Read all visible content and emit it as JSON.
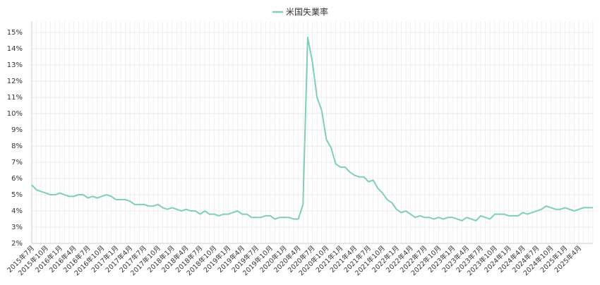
{
  "chart_data": {
    "type": "line",
    "title": "",
    "xlabel": "",
    "ylabel": "",
    "ylim": [
      2,
      15.7
    ],
    "legend_position": "top-center",
    "grid": true,
    "colors": {
      "series": "#7fcdbb",
      "grid": "#e6e6e6",
      "axis": "#333333"
    },
    "y_ticks": [
      "2%",
      "3%",
      "4%",
      "5%",
      "6%",
      "7%",
      "8%",
      "9%",
      "10%",
      "11%",
      "12%",
      "13%",
      "14%",
      "15%"
    ],
    "x_tick_labels": [
      "2015年7月",
      "2015年10月",
      "2016年1月",
      "2016年4月",
      "2016年7月",
      "2016年10月",
      "2017年1月",
      "2017年4月",
      "2017年7月",
      "2017年10月",
      "2018年1月",
      "2018年4月",
      "2018年7月",
      "2018年10月",
      "2019年1月",
      "2019年4月",
      "2019年7月",
      "2019年10月",
      "2020年1月",
      "2020年4月",
      "2020年7月",
      "2020年10月",
      "2021年1月",
      "2021年4月",
      "2021年7月",
      "2021年10月",
      "2022年1月",
      "2022年4月",
      "2022年7月",
      "2022年10月",
      "2023年1月",
      "2023年4月",
      "2023年7月",
      "2023年10月",
      "2024年1月",
      "2024年4月",
      "2024年7月",
      "2024年10月",
      "2025年1月",
      "2025年4月"
    ],
    "series": [
      {
        "name": "米国失業率",
        "x_start": "2015年7月",
        "frequency": "monthly",
        "values": [
          5.6,
          5.3,
          5.2,
          5.1,
          5.0,
          5.0,
          5.1,
          5.0,
          4.9,
          4.9,
          5.0,
          5.0,
          4.8,
          4.9,
          4.8,
          4.9,
          5.0,
          4.9,
          4.7,
          4.7,
          4.7,
          4.6,
          4.4,
          4.4,
          4.4,
          4.3,
          4.3,
          4.4,
          4.2,
          4.1,
          4.2,
          4.1,
          4.0,
          4.1,
          4.0,
          4.0,
          3.8,
          4.0,
          3.8,
          3.8,
          3.7,
          3.8,
          3.8,
          3.9,
          4.0,
          3.8,
          3.8,
          3.6,
          3.6,
          3.6,
          3.7,
          3.7,
          3.5,
          3.6,
          3.6,
          3.6,
          3.5,
          3.5,
          4.4,
          14.7,
          13.2,
          11.0,
          10.2,
          8.4,
          7.9,
          6.9,
          6.7,
          6.7,
          6.4,
          6.2,
          6.1,
          6.1,
          5.8,
          5.9,
          5.4,
          5.1,
          4.7,
          4.5,
          4.1,
          3.9,
          4.0,
          3.8,
          3.6,
          3.7,
          3.6,
          3.6,
          3.5,
          3.6,
          3.5,
          3.6,
          3.6,
          3.5,
          3.4,
          3.6,
          3.5,
          3.4,
          3.7,
          3.6,
          3.5,
          3.8,
          3.8,
          3.8,
          3.7,
          3.7,
          3.7,
          3.9,
          3.8,
          3.9,
          4.0,
          4.1,
          4.3,
          4.2,
          4.1,
          4.1,
          4.2,
          4.1,
          4.0,
          4.1,
          4.2,
          4.2,
          4.2
        ]
      }
    ]
  }
}
